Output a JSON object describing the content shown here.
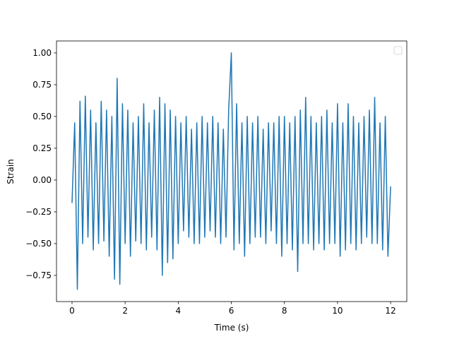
{
  "chart_data": {
    "type": "line",
    "xlabel": "Time (s)",
    "ylabel": "Strain",
    "legend": "upper right",
    "xlim": [
      -0.585,
      12.61
    ],
    "ylim": [
      -0.956,
      1.094
    ],
    "xticks": [
      0,
      2,
      4,
      6,
      8,
      10,
      12
    ],
    "yticks": [
      {
        "value": -0.75,
        "label": "−0.75"
      },
      {
        "value": -0.5,
        "label": "−0.50"
      },
      {
        "value": -0.25,
        "label": "−0.25"
      },
      {
        "value": 0,
        "label": "0.00"
      },
      {
        "value": 0.25,
        "label": "0.25"
      },
      {
        "value": 0.5,
        "label": "0.50"
      },
      {
        "value": 0.75,
        "label": "0.75"
      },
      {
        "value": 1,
        "label": "1.00"
      }
    ],
    "x": [
      0,
      0.1,
      0.2,
      0.3,
      0.4,
      0.5,
      0.6,
      0.7,
      0.8,
      0.9,
      1,
      1.1,
      1.2,
      1.3,
      1.4,
      1.5,
      1.6,
      1.7,
      1.8,
      1.9,
      2,
      2.1,
      2.2,
      2.3,
      2.4,
      2.5,
      2.6,
      2.7,
      2.8,
      2.9,
      3,
      3.1,
      3.2,
      3.3,
      3.4,
      3.5,
      3.6,
      3.7,
      3.8,
      3.9,
      4,
      4.1,
      4.2,
      4.3,
      4.4,
      4.5,
      4.6,
      4.7,
      4.8,
      4.9,
      5,
      5.1,
      5.2,
      5.3,
      5.4,
      5.5,
      5.6,
      5.7,
      5.8,
      5.9,
      6,
      6.1,
      6.2,
      6.3,
      6.4,
      6.5,
      6.6,
      6.7,
      6.8,
      6.9,
      7,
      7.1,
      7.2,
      7.3,
      7.4,
      7.5,
      7.6,
      7.7,
      7.8,
      7.9,
      8,
      8.1,
      8.2,
      8.3,
      8.4,
      8.5,
      8.6,
      8.7,
      8.8,
      8.9,
      9,
      9.1,
      9.2,
      9.3,
      9.4,
      9.5,
      9.6,
      9.7,
      9.8,
      9.9,
      10,
      10.1,
      10.2,
      10.3,
      10.4,
      10.5,
      10.6,
      10.7,
      10.8,
      10.9,
      11,
      11.1,
      11.2,
      11.3,
      11.4,
      11.5,
      11.6,
      11.7,
      11.8,
      11.9,
      12
    ],
    "series": [
      {
        "color": "#1f77b4",
        "values": [
          -0.18,
          0.45,
          -0.86,
          0.62,
          -0.5,
          0.66,
          -0.45,
          0.55,
          -0.55,
          0.45,
          -0.5,
          0.62,
          -0.48,
          0.55,
          -0.6,
          0.5,
          -0.78,
          0.8,
          -0.82,
          0.6,
          -0.5,
          0.55,
          -0.6,
          0.45,
          -0.48,
          0.5,
          -0.5,
          0.6,
          -0.55,
          0.45,
          -0.45,
          0.55,
          -0.55,
          0.65,
          -0.75,
          0.6,
          -0.65,
          0.55,
          -0.62,
          0.5,
          -0.5,
          0.45,
          -0.4,
          0.5,
          -0.45,
          0.4,
          -0.5,
          0.45,
          -0.5,
          0.5,
          -0.45,
          0.45,
          -0.4,
          0.5,
          -0.45,
          0.45,
          -0.5,
          0.4,
          -0.45,
          0.55,
          1.0,
          -0.55,
          0.6,
          -0.5,
          0.45,
          -0.6,
          0.5,
          -0.5,
          0.45,
          -0.45,
          0.5,
          -0.45,
          0.4,
          -0.5,
          0.45,
          -0.4,
          0.45,
          -0.5,
          0.5,
          -0.6,
          0.5,
          -0.5,
          0.45,
          -0.55,
          0.5,
          -0.72,
          0.55,
          -0.5,
          0.65,
          -0.5,
          0.5,
          -0.55,
          0.45,
          -0.5,
          0.5,
          -0.55,
          0.55,
          -0.5,
          0.45,
          -0.5,
          0.6,
          -0.6,
          0.45,
          -0.55,
          0.6,
          -0.5,
          0.5,
          -0.55,
          0.45,
          -0.5,
          0.5,
          -0.45,
          0.55,
          -0.5,
          0.65,
          -0.5,
          0.45,
          -0.55,
          0.5,
          -0.6,
          -0.05
        ]
      }
    ]
  }
}
